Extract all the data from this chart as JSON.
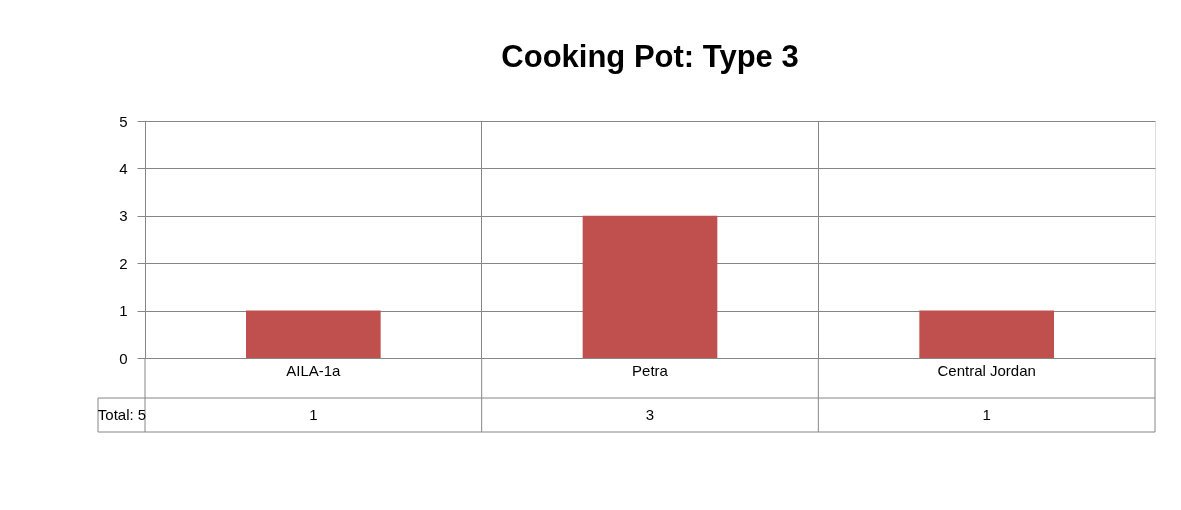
{
  "chart_data": {
    "type": "bar",
    "title": "Cooking Pot: Type 3",
    "categories": [
      "AILA-1a",
      "Petra",
      "Central Jordan"
    ],
    "values": [
      1,
      3,
      1
    ],
    "color": "#c0504d",
    "ylim": [
      0,
      5
    ],
    "yticks": [
      0,
      1,
      2,
      3,
      4,
      5
    ],
    "grid": true,
    "data_labels": true,
    "annotations": [
      "Total: 5"
    ]
  }
}
